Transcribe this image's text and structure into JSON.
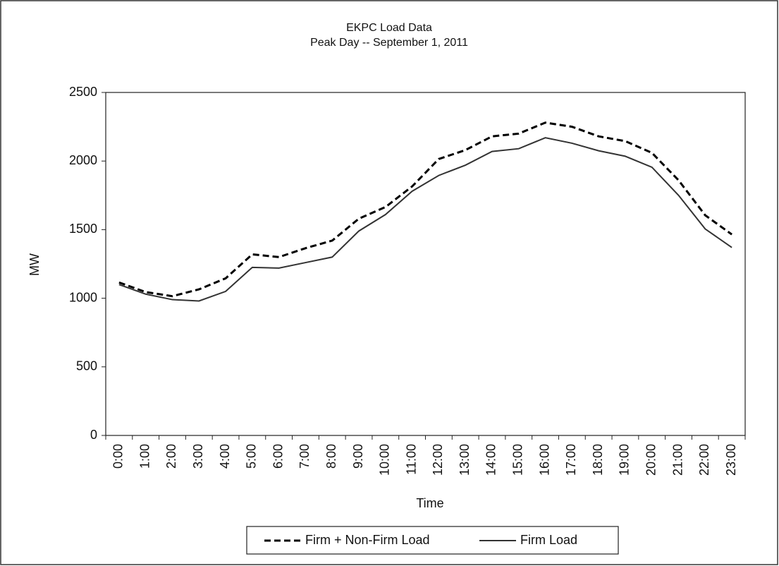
{
  "chart_data": {
    "type": "line",
    "title": "EKPC Load Data",
    "subtitle": "Peak Day -- September 1, 2011",
    "x_label": "Time",
    "y_label": "MW",
    "categories": [
      "0:00",
      "1:00",
      "2:00",
      "3:00",
      "4:00",
      "5:00",
      "6:00",
      "7:00",
      "8:00",
      "9:00",
      "10:00",
      "11:00",
      "12:00",
      "13:00",
      "14:00",
      "15:00",
      "16:00",
      "17:00",
      "18:00",
      "19:00",
      "20:00",
      "21:00",
      "22:00",
      "23:00"
    ],
    "series": [
      {
        "name": "Firm + Non-Firm Load",
        "color": "#000000",
        "dash": true,
        "values": [
          1115,
          1045,
          1015,
          1065,
          1145,
          1320,
          1300,
          1365,
          1420,
          1580,
          1665,
          1815,
          2015,
          2080,
          2180,
          2200,
          2280,
          2250,
          2180,
          2145,
          2060,
          1860,
          1605,
          1465
        ]
      },
      {
        "name": "Firm Load",
        "color": "#333333",
        "dash": false,
        "values": [
          1100,
          1030,
          990,
          980,
          1050,
          1225,
          1220,
          1260,
          1300,
          1490,
          1610,
          1780,
          1895,
          1970,
          2070,
          2090,
          2170,
          2130,
          2075,
          2035,
          1955,
          1750,
          1505,
          1370
        ]
      }
    ],
    "ylim": [
      0,
      2500
    ],
    "yticks": [
      0,
      500,
      1000,
      1500,
      2000,
      2500
    ],
    "grid": false,
    "legend": "bottom"
  }
}
